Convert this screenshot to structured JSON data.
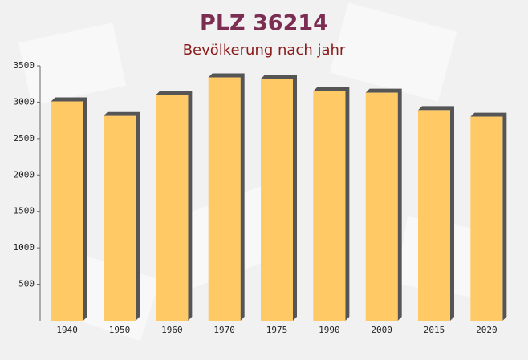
{
  "chart_data": {
    "type": "bar",
    "title": "PLZ 36214",
    "subtitle": "Bevölkerung nach jahr",
    "categories": [
      "1940",
      "1950",
      "1960",
      "1970",
      "1975",
      "1990",
      "2000",
      "2015",
      "2020"
    ],
    "values": [
      3010,
      2810,
      3100,
      3340,
      3320,
      3150,
      3130,
      2890,
      2800
    ],
    "color": "#ffc966",
    "ylim": [
      0,
      3500
    ],
    "yticks": [
      500,
      1000,
      1500,
      2000,
      2500,
      3000,
      3500
    ]
  }
}
